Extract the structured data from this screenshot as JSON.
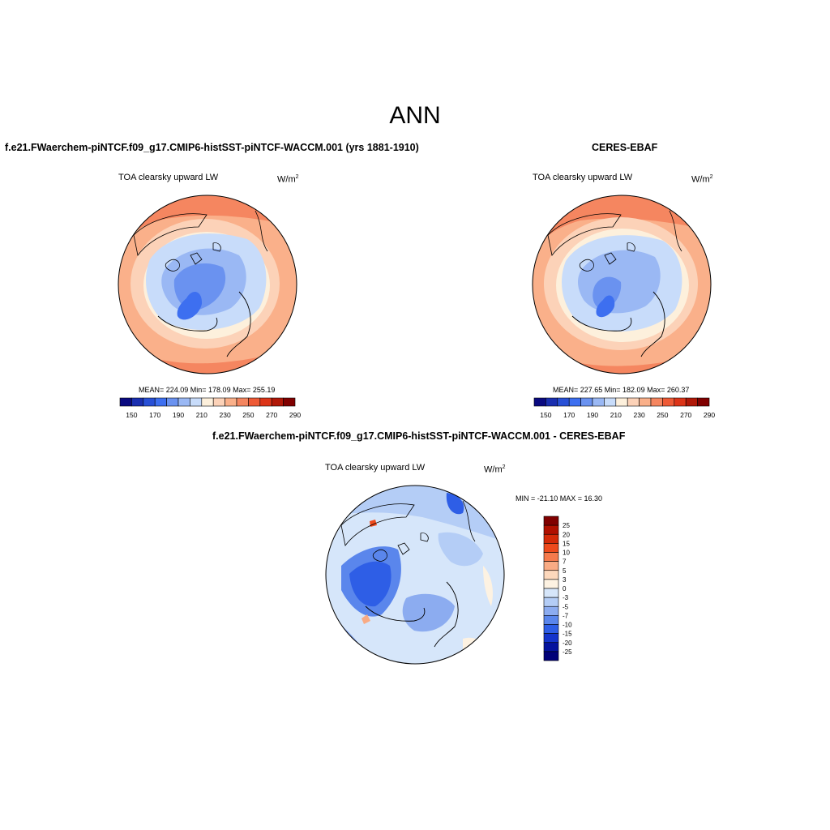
{
  "main_title": "ANN",
  "panels": {
    "model": {
      "title": "f.e21.FWaerchem-piNTCF.f09_g17.CMIP6-histSST-piNTCF-WACCM.001 (yrs 1881-1910)",
      "variable": "TOA clearsky upward LW",
      "unit_base": "W/m",
      "unit_exp": "2",
      "stats": "MEAN= 224.09  Min= 178.09  Max= 255.19"
    },
    "obs": {
      "title": "CERES-EBAF",
      "variable": "TOA clearsky upward LW",
      "unit_base": "W/m",
      "unit_exp": "2",
      "stats": "MEAN= 227.65  Min= 182.09  Max= 260.37"
    },
    "diff": {
      "title": "f.e21.FWaerchem-piNTCF.f09_g17.CMIP6-histSST-piNTCF-WACCM.001 - CERES-EBAF",
      "variable": "TOA clearsky upward LW",
      "unit_base": "W/m",
      "unit_exp": "2",
      "stats": "MIN = -21.10 MAX =  16.30"
    }
  },
  "colorbar_abs": {
    "colors": [
      "#0a0a80",
      "#1a2fb0",
      "#2850d6",
      "#3d6ff0",
      "#6a92f0",
      "#9ab8f4",
      "#c8dcfa",
      "#fdf0dc",
      "#fcd2b8",
      "#fab08a",
      "#f58660",
      "#ee5a36",
      "#dc3418",
      "#b01808",
      "#800000"
    ],
    "ticks": [
      "150",
      "170",
      "190",
      "210",
      "230",
      "250",
      "270",
      "290"
    ]
  },
  "colorbar_diff": {
    "colors": [
      "#800000",
      "#b01000",
      "#d42a08",
      "#ee4a1c",
      "#f57a4c",
      "#f9ab84",
      "#fdd8bc",
      "#fdf2e2",
      "#d6e6fa",
      "#b4cdf6",
      "#8cacf0",
      "#5a86ec",
      "#2e5ee6",
      "#1434cc",
      "#04129e",
      "#000078"
    ],
    "labels": [
      "25",
      "20",
      "15",
      "10",
      "7",
      "5",
      "3",
      "0",
      "-3",
      "-5",
      "-7",
      "-10",
      "-15",
      "-20",
      "-25"
    ]
  }
}
